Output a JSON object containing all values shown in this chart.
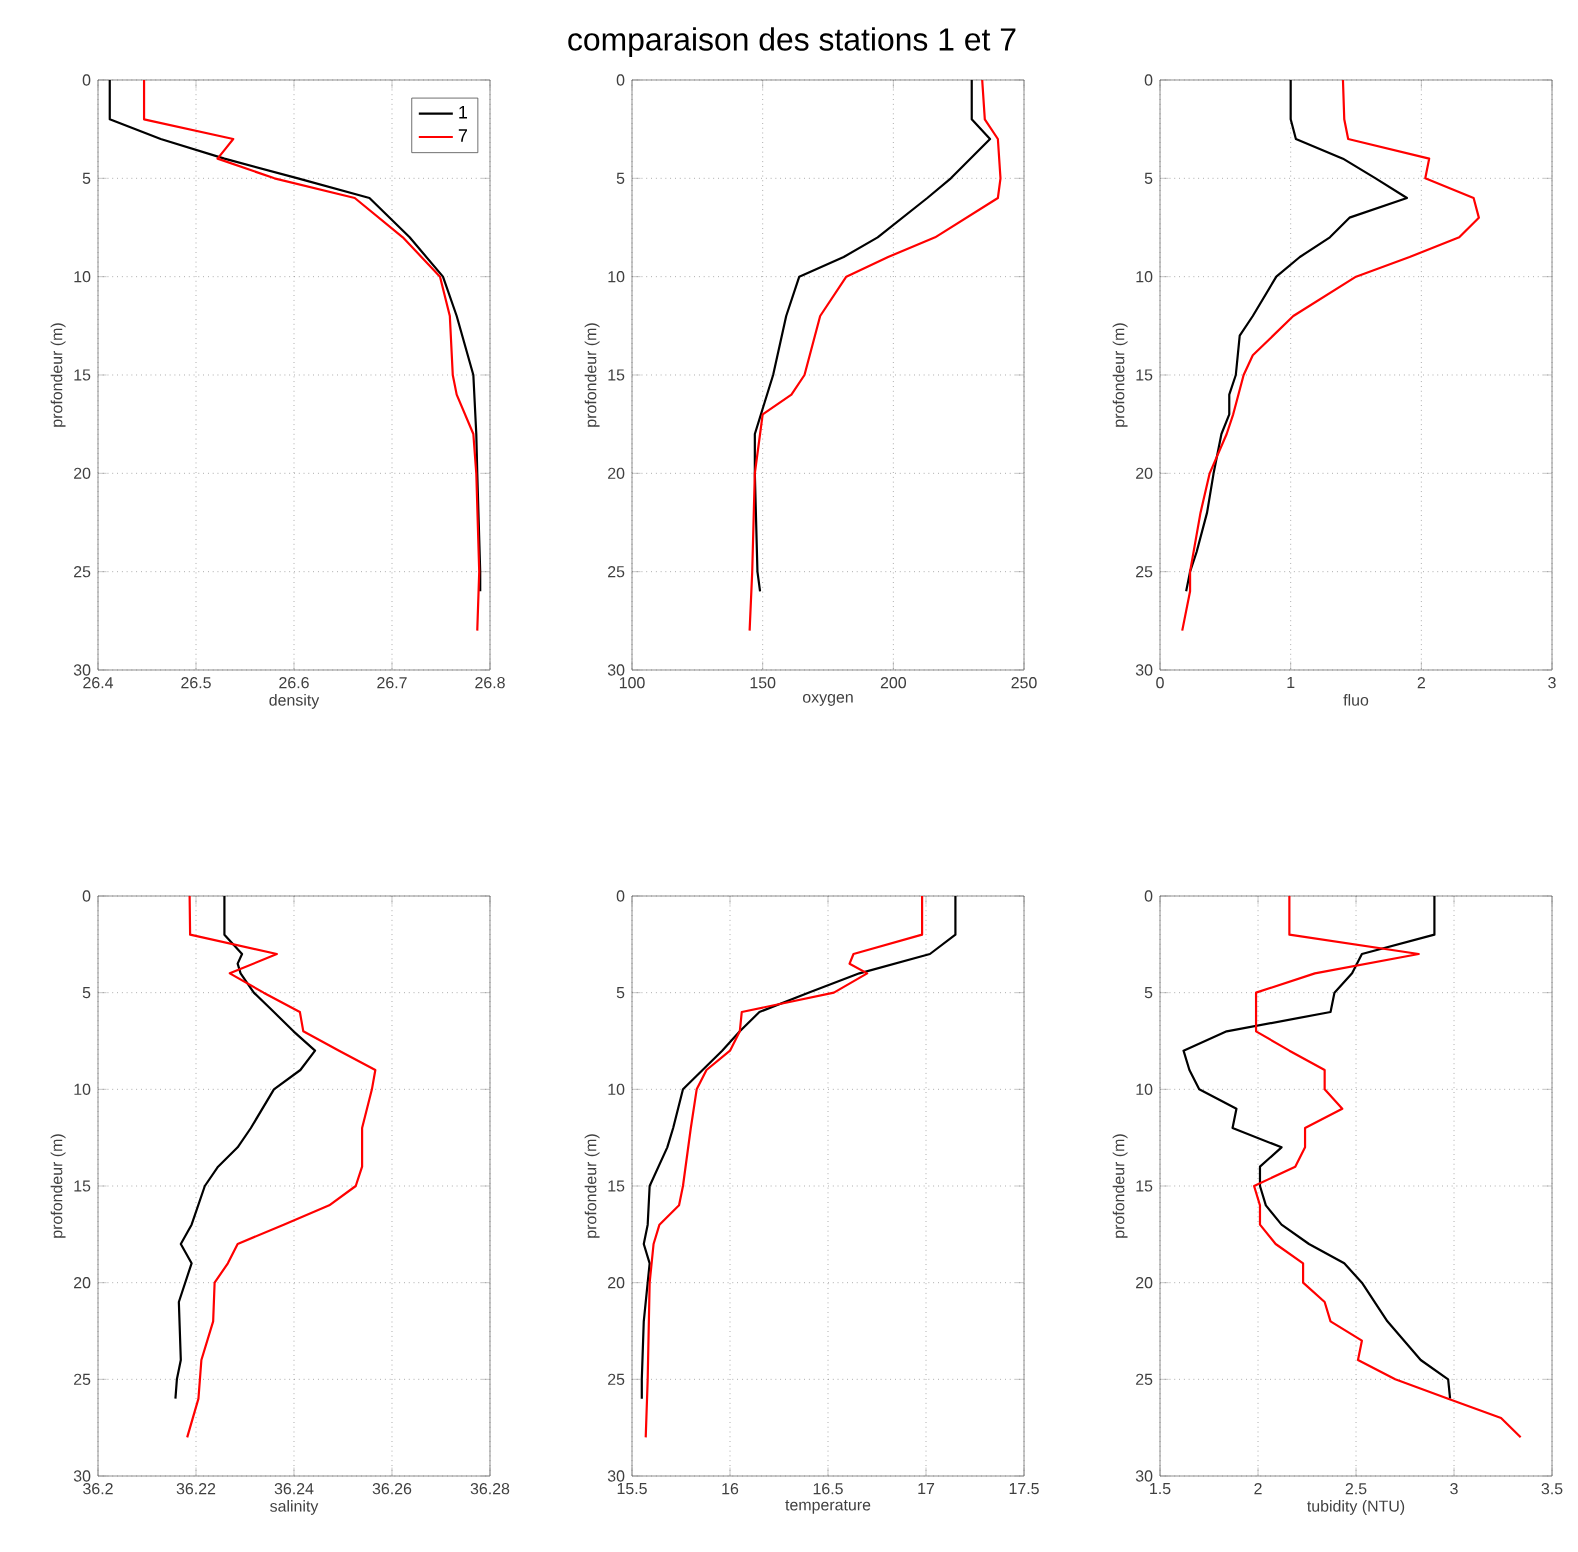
{
  "chart_data": [
    {
      "type": "line",
      "xlabel": "density",
      "ylabel": "profondeur (m)",
      "xlim": [
        26.4,
        26.8
      ],
      "ylim": [
        30,
        0
      ],
      "xticks": [
        26.4,
        26.5,
        26.6,
        26.7,
        26.8
      ],
      "yticks": [
        0,
        5,
        10,
        15,
        20,
        25,
        30
      ],
      "grid": true,
      "legend": "top right",
      "line_style": "solid",
      "series": [
        {
          "name": "1",
          "color": "#000000",
          "x": [
            26.412,
            26.412,
            26.464,
            26.529,
            26.604,
            26.677,
            26.718,
            26.752,
            26.766,
            26.783,
            26.786,
            26.787,
            26.79,
            26.79
          ],
          "values": [
            0,
            2,
            3,
            4,
            5,
            6,
            8,
            10,
            12,
            15,
            18,
            20,
            25,
            26
          ]
        },
        {
          "name": "7",
          "color": "#ff0000",
          "x": [
            26.447,
            26.447,
            26.538,
            26.53,
            26.522,
            26.58,
            26.662,
            26.711,
            26.749,
            26.759,
            26.762,
            26.766,
            26.783,
            26.786,
            26.789,
            26.787
          ],
          "values": [
            0,
            2,
            3,
            3.5,
            4,
            5,
            6,
            8,
            10,
            12,
            15,
            16,
            18,
            20,
            25,
            28
          ]
        }
      ]
    },
    {
      "type": "line",
      "title": "comparaison des stations 1 et 7",
      "xlabel": "oxygen",
      "ylabel": "profondeur (m)",
      "xlim": [
        100,
        250
      ],
      "ylim": [
        30,
        0
      ],
      "xticks": [
        100,
        150,
        200,
        250
      ],
      "yticks": [
        0,
        5,
        10,
        15,
        20,
        25,
        30
      ],
      "grid": true,
      "line_style": "solid",
      "series": [
        {
          "color": "#000000",
          "x": [
            230,
            230,
            237,
            222,
            213,
            194,
            181,
            164,
            159,
            154,
            147,
            147,
            148,
            149
          ],
          "values": [
            0,
            2,
            3,
            5,
            6,
            8,
            9,
            10,
            12,
            15,
            18,
            20,
            25,
            26
          ]
        },
        {
          "color": "#ff0000",
          "x": [
            234,
            235,
            240,
            241,
            240,
            216,
            198,
            182,
            172,
            166,
            161,
            150,
            149,
            147,
            146,
            145
          ],
          "values": [
            0,
            2,
            3,
            5,
            6,
            8,
            9,
            10,
            12,
            15,
            16,
            17,
            18,
            20,
            25,
            28
          ]
        }
      ]
    },
    {
      "type": "line",
      "xlabel": "fluo",
      "ylabel": "profondeur (m)",
      "xlim": [
        0,
        3
      ],
      "ylim": [
        30,
        0
      ],
      "xticks": [
        0,
        1,
        2,
        3
      ],
      "yticks": [
        0,
        5,
        10,
        15,
        20,
        25,
        30
      ],
      "grid": true,
      "line_style": "solid",
      "series": [
        {
          "color": "#000000",
          "x": [
            1.0,
            1.0,
            1.04,
            1.4,
            1.65,
            1.89,
            1.45,
            1.3,
            1.07,
            0.89,
            0.71,
            0.61,
            0.58,
            0.53,
            0.53,
            0.47,
            0.41,
            0.36,
            0.28,
            0.23,
            0.2
          ],
          "values": [
            0,
            2,
            3,
            4,
            5,
            6,
            7,
            8,
            9,
            10,
            12,
            13,
            15,
            16,
            17,
            18,
            20,
            22,
            24,
            25,
            26
          ]
        },
        {
          "color": "#ff0000",
          "x": [
            1.4,
            1.41,
            1.44,
            2.06,
            2.03,
            2.4,
            2.44,
            2.29,
            1.91,
            1.5,
            1.02,
            0.71,
            0.64,
            0.56,
            0.51,
            0.38,
            0.31,
            0.23,
            0.23,
            0.17
          ],
          "values": [
            0,
            2,
            3,
            4,
            5,
            6,
            7,
            8,
            9,
            10,
            12,
            14,
            15,
            17,
            18,
            20,
            22,
            25,
            26,
            28
          ]
        }
      ]
    },
    {
      "type": "line",
      "xlabel": "salinity",
      "ylabel": "profondeur (m)",
      "xlim": [
        36.2,
        36.28
      ],
      "ylim": [
        30,
        0
      ],
      "xticks": [
        36.2,
        36.22,
        36.24,
        36.26,
        36.28
      ],
      "yticks": [
        0,
        5,
        10,
        15,
        20,
        25,
        30
      ],
      "grid": true,
      "line_style": "solid",
      "series": [
        {
          "color": "#000000",
          "x": [
            36.2258,
            36.2258,
            36.2294,
            36.2285,
            36.2291,
            36.2318,
            36.2359,
            36.2399,
            36.2443,
            36.2413,
            36.2359,
            36.2312,
            36.2285,
            36.2245,
            36.2218,
            36.2191,
            36.2169,
            36.2191,
            36.2178,
            36.2165,
            36.2169,
            36.2161,
            36.2158
          ],
          "values": [
            0,
            2,
            3,
            3.5,
            4,
            5,
            6,
            7,
            8,
            9,
            10,
            12,
            13,
            14,
            15,
            17,
            18,
            19,
            20,
            21,
            24,
            25,
            26
          ]
        },
        {
          "color": "#ff0000",
          "x": [
            36.2187,
            36.2188,
            36.2365,
            36.2269,
            36.2338,
            36.2412,
            36.2419,
            36.2492,
            36.2566,
            36.2559,
            36.2539,
            36.2539,
            36.2526,
            36.2472,
            36.2379,
            36.2285,
            36.2265,
            36.2238,
            36.2235,
            36.2211,
            36.2205,
            36.2182
          ],
          "values": [
            0,
            2,
            3,
            4,
            5,
            6,
            7,
            8,
            9,
            10,
            12,
            14,
            15,
            16,
            17,
            18,
            19,
            20,
            22,
            24,
            26,
            28
          ]
        }
      ]
    },
    {
      "type": "line",
      "xlabel": "temperature",
      "ylabel": "profondeur (m)",
      "xlim": [
        15.5,
        17.5
      ],
      "ylim": [
        30,
        0
      ],
      "xticks": [
        15.5,
        16,
        16.5,
        17,
        17.5
      ],
      "yticks": [
        0,
        5,
        10,
        15,
        20,
        25,
        30
      ],
      "grid": true,
      "line_style": "solid",
      "series": [
        {
          "color": "#000000",
          "x": [
            17.15,
            17.15,
            17.02,
            16.66,
            16.4,
            16.15,
            16.05,
            15.96,
            15.86,
            15.76,
            15.71,
            15.68,
            15.59,
            15.58,
            15.56,
            15.59,
            15.58,
            15.56,
            15.55,
            15.55
          ],
          "values": [
            0,
            2,
            3,
            4,
            5,
            6,
            7,
            8,
            9,
            10,
            12,
            13,
            15,
            17,
            18,
            19,
            20,
            22,
            25,
            26
          ]
        },
        {
          "color": "#ff0000",
          "x": [
            16.98,
            16.98,
            16.63,
            16.61,
            16.7,
            16.53,
            16.06,
            16.05,
            16.0,
            15.88,
            15.83,
            15.8,
            15.76,
            15.74,
            15.64,
            15.61,
            15.59,
            15.58,
            15.57
          ],
          "values": [
            0,
            2,
            3,
            3.5,
            4,
            5,
            6,
            7,
            8,
            9,
            10,
            12,
            15,
            16,
            17,
            18,
            20,
            25,
            28
          ]
        }
      ]
    },
    {
      "type": "line",
      "xlabel": "tubidity (NTU)",
      "ylabel": "profondeur (m)",
      "xlim": [
        1.5,
        3.5
      ],
      "ylim": [
        30,
        0
      ],
      "xticks": [
        1.5,
        2,
        2.5,
        3,
        3.5
      ],
      "yticks": [
        0,
        5,
        10,
        15,
        20,
        25,
        30
      ],
      "grid": true,
      "line_style": "solid",
      "series": [
        {
          "color": "#000000",
          "x": [
            2.9,
            2.9,
            2.53,
            2.48,
            2.39,
            2.37,
            1.84,
            1.62,
            1.65,
            1.7,
            1.89,
            1.87,
            2.12,
            2.01,
            2.01,
            2.04,
            2.12,
            2.26,
            2.44,
            2.53,
            2.66,
            2.83,
            2.97,
            2.98
          ],
          "values": [
            0,
            2,
            3,
            4,
            5,
            6,
            7,
            8,
            9,
            10,
            11,
            12,
            13,
            14,
            15,
            16,
            17,
            18,
            19,
            20,
            22,
            24,
            25,
            26
          ]
        },
        {
          "color": "#ff0000",
          "x": [
            2.16,
            2.16,
            2.82,
            2.29,
            1.99,
            1.99,
            2.16,
            2.34,
            2.34,
            2.43,
            2.24,
            2.24,
            2.19,
            1.98,
            2.01,
            2.01,
            2.09,
            2.23,
            2.23,
            2.34,
            2.37,
            2.53,
            2.51,
            2.7,
            2.97,
            3.24,
            3.34
          ],
          "values": [
            0,
            2,
            3,
            4,
            5,
            7,
            8,
            9,
            10,
            11,
            12,
            13,
            14,
            15,
            16,
            17,
            18,
            19,
            20,
            21,
            22,
            23,
            24,
            25,
            26,
            27,
            28
          ]
        }
      ]
    }
  ]
}
